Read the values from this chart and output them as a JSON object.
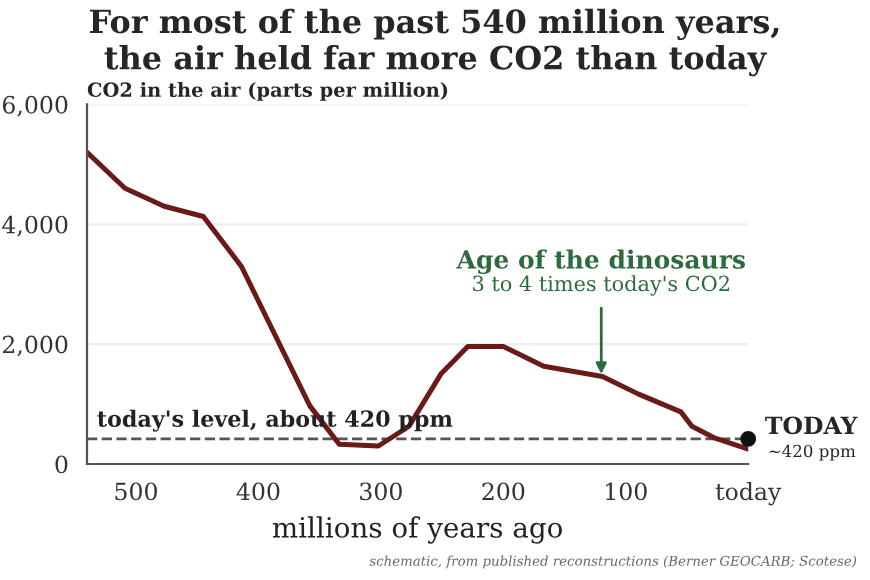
{
  "chart_data": {
    "type": "line",
    "title": "For most of the past 540 million years,\nthe air held far more CO2 than today",
    "xlabel": "millions of years ago",
    "ylabel": "CO2 in the air (parts per million)",
    "xlim": [
      540,
      0
    ],
    "xticks": [
      500,
      400,
      300,
      {
        "value": 200,
        "label": "200"
      },
      100,
      {
        "value": 0,
        "label": "today"
      }
    ],
    "ylim": [
      0,
      6000
    ],
    "yticks": [
      {
        "value": 0,
        "label": "0"
      },
      {
        "value": 2000,
        "label": "2,000"
      },
      {
        "value": 4000,
        "label": "4,000"
      },
      {
        "value": 6000,
        "label": "6,000"
      }
    ],
    "grid": "y",
    "series": [
      {
        "color": "#6b1a1a",
        "x": [
          540,
          509,
          477,
          445,
          414,
          358,
          334,
          302,
          277,
          251,
          229,
          200,
          167,
          119,
          90,
          55,
          46,
          27,
          0
        ],
        "values": [
          5200,
          4600,
          4300,
          4130,
          3300,
          970,
          330,
          300,
          630,
          1500,
          1960,
          1960,
          1630,
          1460,
          1170,
          870,
          630,
          430,
          250
        ]
      },
      {
        "type": "scatter",
        "color": "#111111",
        "x": [
          0
        ],
        "values": [
          420
        ],
        "marker": "circle"
      }
    ],
    "ref_lines": [
      {
        "axis": "y",
        "value": 420,
        "label": "today's level, about 420 ppm",
        "color": "#555555",
        "line_style": "dashed"
      }
    ],
    "annotations": [
      "Age of the dinosaurs",
      {
        "text": "3 to 4 times today's CO2",
        "x": 120,
        "y": 1460
      },
      {
        "text": "TODAY",
        "x": 0,
        "y": 420
      },
      "~420 ppm",
      "schematic, from published reconstructions (Berner GEOCARB; Scotese)"
    ]
  }
}
